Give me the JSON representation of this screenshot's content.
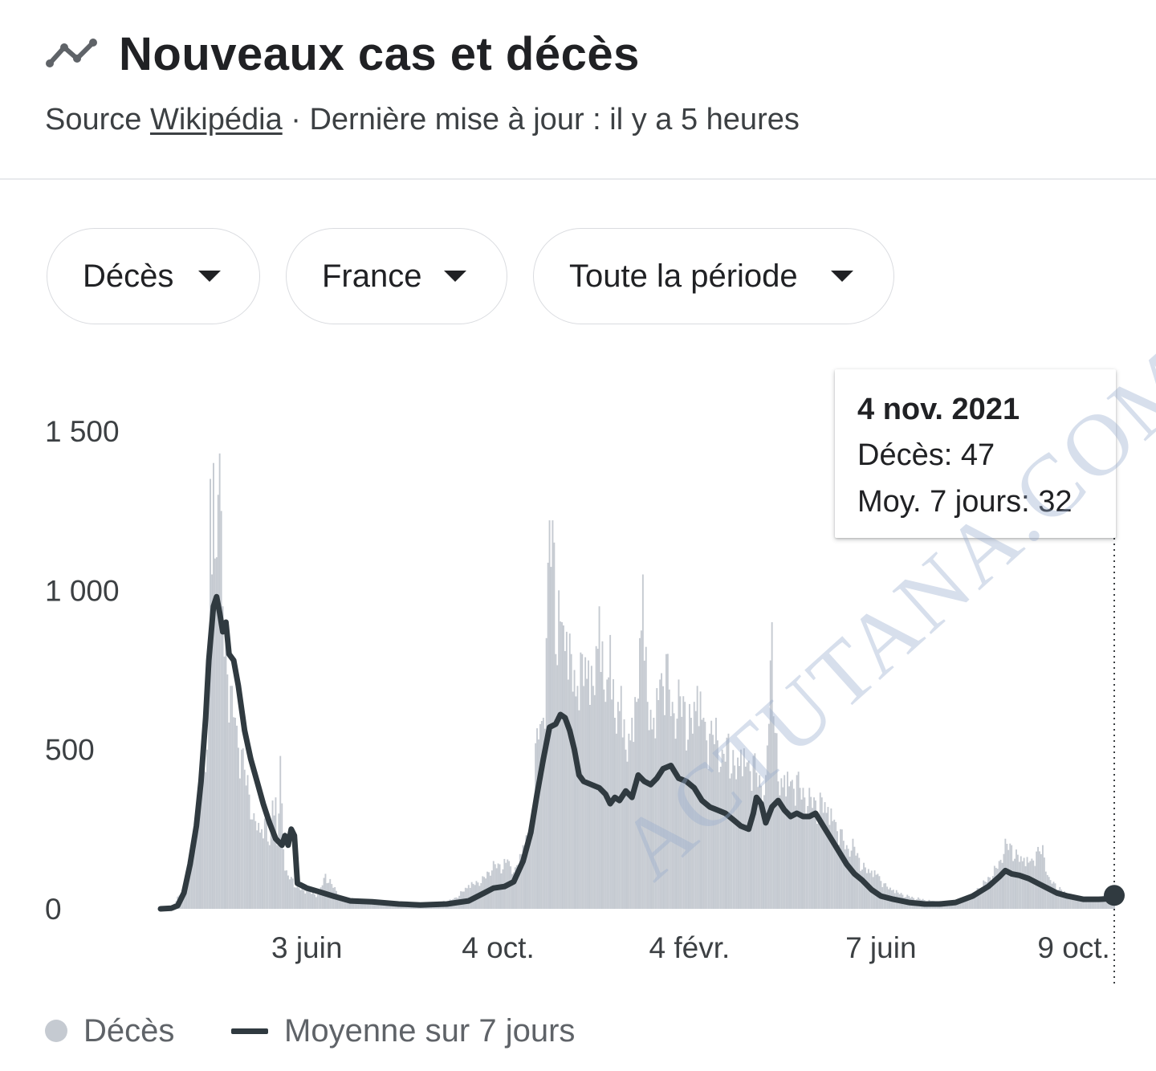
{
  "header": {
    "title": "Nouveaux cas et décès",
    "icon": "trending-line-icon",
    "source_prefix": "Source",
    "source_link": "Wikipédia",
    "updated": "· Dernière mise à jour : il y a 5 heures"
  },
  "filters": [
    {
      "label": "Décès"
    },
    {
      "label": "France"
    },
    {
      "label": "Toute la période"
    }
  ],
  "tooltip": {
    "date": "4 nov. 2021",
    "deaths_line": "Décès: 47",
    "avg_line": "Moy. 7 jours: 32"
  },
  "legend": {
    "deaths": "Décès",
    "average": "Moyenne sur 7 jours"
  },
  "watermark": "ACTUTANA.COM",
  "colors": {
    "bars": "#c5cad1",
    "line": "#303a40",
    "text": "#202124",
    "muted": "#5f6368"
  },
  "chart_data": {
    "type": "bar",
    "title": "Nouveaux cas et décès",
    "yticks": [
      {
        "value": 0,
        "label": "0"
      },
      {
        "value": 500,
        "label": "500"
      },
      {
        "value": 1000,
        "label": "1 000"
      },
      {
        "value": 1500,
        "label": "1 500"
      }
    ],
    "ylim": [
      0,
      1500
    ],
    "xlim": [
      "2020-03-01",
      "2021-11-04"
    ],
    "xticks": [
      {
        "date": "2020-06-03",
        "label": "3 juin"
      },
      {
        "date": "2020-10-04",
        "label": "4 oct."
      },
      {
        "date": "2021-02-04",
        "label": "4 févr."
      },
      {
        "date": "2021-06-07",
        "label": "7 juin"
      },
      {
        "date": "2021-10-09",
        "label": "9 oct."
      }
    ],
    "grid": false,
    "legend_position": "bottom-left",
    "series": [
      {
        "name": "Décès",
        "kind": "bar",
        "points": [
          [
            "2020-03-01",
            0
          ],
          [
            "2020-03-08",
            5
          ],
          [
            "2020-03-15",
            60
          ],
          [
            "2020-03-20",
            150
          ],
          [
            "2020-03-25",
            310
          ],
          [
            "2020-03-28",
            400
          ],
          [
            "2020-03-31",
            500
          ],
          [
            "2020-04-02",
            1350
          ],
          [
            "2020-04-03",
            1050
          ],
          [
            "2020-04-04",
            1400
          ],
          [
            "2020-04-05",
            1100
          ],
          [
            "2020-04-07",
            1300
          ],
          [
            "2020-04-08",
            1430
          ],
          [
            "2020-04-10",
            950
          ],
          [
            "2020-04-12",
            850
          ],
          [
            "2020-04-15",
            700
          ],
          [
            "2020-04-18",
            600
          ],
          [
            "2020-04-22",
            500
          ],
          [
            "2020-04-26",
            420
          ],
          [
            "2020-04-30",
            300
          ],
          [
            "2020-05-05",
            250
          ],
          [
            "2020-05-08",
            280
          ],
          [
            "2020-05-10",
            200
          ],
          [
            "2020-05-12",
            340
          ],
          [
            "2020-05-14",
            350
          ],
          [
            "2020-05-15",
            200
          ],
          [
            "2020-05-17",
            480
          ],
          [
            "2020-05-20",
            120
          ],
          [
            "2020-05-25",
            95
          ],
          [
            "2020-05-28",
            70
          ],
          [
            "2020-06-03",
            60
          ],
          [
            "2020-06-10",
            45
          ],
          [
            "2020-06-15",
            110
          ],
          [
            "2020-06-25",
            40
          ],
          [
            "2020-07-10",
            25
          ],
          [
            "2020-07-25",
            18
          ],
          [
            "2020-08-10",
            15
          ],
          [
            "2020-08-25",
            20
          ],
          [
            "2020-09-05",
            30
          ],
          [
            "2020-09-15",
            75
          ],
          [
            "2020-09-25",
            100
          ],
          [
            "2020-10-01",
            150
          ],
          [
            "2020-10-05",
            140
          ],
          [
            "2020-10-10",
            155
          ],
          [
            "2020-10-15",
            130
          ],
          [
            "2020-10-20",
            200
          ],
          [
            "2020-10-25",
            250
          ],
          [
            "2020-10-28",
            520
          ],
          [
            "2020-10-31",
            580
          ],
          [
            "2020-11-02",
            600
          ],
          [
            "2020-11-04",
            850
          ],
          [
            "2020-11-06",
            1220
          ],
          [
            "2020-11-08",
            1220
          ],
          [
            "2020-11-09",
            1150
          ],
          [
            "2020-11-10",
            800
          ],
          [
            "2020-11-12",
            1000
          ],
          [
            "2020-11-14",
            900
          ],
          [
            "2020-11-17",
            870
          ],
          [
            "2020-11-20",
            800
          ],
          [
            "2020-11-24",
            700
          ],
          [
            "2020-11-27",
            800
          ],
          [
            "2020-12-01",
            780
          ],
          [
            "2020-12-04",
            700
          ],
          [
            "2020-12-08",
            950
          ],
          [
            "2020-12-12",
            650
          ],
          [
            "2020-12-15",
            860
          ],
          [
            "2020-12-18",
            600
          ],
          [
            "2020-12-22",
            700
          ],
          [
            "2020-12-25",
            500
          ],
          [
            "2020-12-29",
            600
          ],
          [
            "2021-01-01",
            650
          ],
          [
            "2021-01-05",
            1050
          ],
          [
            "2021-01-08",
            650
          ],
          [
            "2021-01-12",
            600
          ],
          [
            "2021-01-16",
            720
          ],
          [
            "2021-01-20",
            800
          ],
          [
            "2021-01-24",
            650
          ],
          [
            "2021-01-28",
            720
          ],
          [
            "2021-02-01",
            650
          ],
          [
            "2021-02-05",
            600
          ],
          [
            "2021-02-09",
            700
          ],
          [
            "2021-02-13",
            600
          ],
          [
            "2021-02-17",
            550
          ],
          [
            "2021-02-21",
            600
          ],
          [
            "2021-02-25",
            500
          ],
          [
            "2021-03-01",
            550
          ],
          [
            "2021-03-05",
            450
          ],
          [
            "2021-03-09",
            500
          ],
          [
            "2021-03-13",
            460
          ],
          [
            "2021-03-17",
            480
          ],
          [
            "2021-03-21",
            420
          ],
          [
            "2021-03-25",
            420
          ],
          [
            "2021-03-29",
            900
          ],
          [
            "2021-04-02",
            400
          ],
          [
            "2021-04-06",
            420
          ],
          [
            "2021-04-10",
            400
          ],
          [
            "2021-04-14",
            420
          ],
          [
            "2021-04-18",
            380
          ],
          [
            "2021-04-22",
            380
          ],
          [
            "2021-04-26",
            340
          ],
          [
            "2021-04-30",
            350
          ],
          [
            "2021-05-04",
            320
          ],
          [
            "2021-05-08",
            280
          ],
          [
            "2021-05-12",
            250
          ],
          [
            "2021-05-16",
            200
          ],
          [
            "2021-05-20",
            220
          ],
          [
            "2021-05-24",
            160
          ],
          [
            "2021-05-28",
            130
          ],
          [
            "2021-06-01",
            120
          ],
          [
            "2021-06-05",
            110
          ],
          [
            "2021-06-09",
            80
          ],
          [
            "2021-06-15",
            60
          ],
          [
            "2021-06-25",
            40
          ],
          [
            "2021-07-10",
            25
          ],
          [
            "2021-07-25",
            20
          ],
          [
            "2021-08-05",
            50
          ],
          [
            "2021-08-15",
            100
          ],
          [
            "2021-08-22",
            150
          ],
          [
            "2021-08-26",
            220
          ],
          [
            "2021-08-30",
            200
          ],
          [
            "2021-09-03",
            170
          ],
          [
            "2021-09-07",
            160
          ],
          [
            "2021-09-11",
            150
          ],
          [
            "2021-09-15",
            180
          ],
          [
            "2021-09-19",
            200
          ],
          [
            "2021-09-23",
            100
          ],
          [
            "2021-09-27",
            80
          ],
          [
            "2021-10-01",
            60
          ],
          [
            "2021-10-09",
            40
          ],
          [
            "2021-10-20",
            30
          ],
          [
            "2021-11-04",
            47
          ]
        ]
      },
      {
        "name": "Moyenne sur 7 jours",
        "kind": "line",
        "points": [
          [
            "2020-03-01",
            0
          ],
          [
            "2020-03-08",
            2
          ],
          [
            "2020-03-12",
            10
          ],
          [
            "2020-03-16",
            50
          ],
          [
            "2020-03-20",
            140
          ],
          [
            "2020-03-24",
            260
          ],
          [
            "2020-03-27",
            400
          ],
          [
            "2020-03-30",
            600
          ],
          [
            "2020-04-01",
            780
          ],
          [
            "2020-04-04",
            950
          ],
          [
            "2020-04-06",
            980
          ],
          [
            "2020-04-08",
            930
          ],
          [
            "2020-04-10",
            870
          ],
          [
            "2020-04-12",
            900
          ],
          [
            "2020-04-14",
            800
          ],
          [
            "2020-04-17",
            780
          ],
          [
            "2020-04-20",
            700
          ],
          [
            "2020-04-24",
            560
          ],
          [
            "2020-04-28",
            470
          ],
          [
            "2020-05-02",
            400
          ],
          [
            "2020-05-06",
            330
          ],
          [
            "2020-05-10",
            270
          ],
          [
            "2020-05-14",
            220
          ],
          [
            "2020-05-18",
            200
          ],
          [
            "2020-05-20",
            230
          ],
          [
            "2020-05-22",
            200
          ],
          [
            "2020-05-24",
            250
          ],
          [
            "2020-05-26",
            230
          ],
          [
            "2020-05-28",
            80
          ],
          [
            "2020-06-03",
            65
          ],
          [
            "2020-06-10",
            55
          ],
          [
            "2020-06-20",
            40
          ],
          [
            "2020-07-01",
            25
          ],
          [
            "2020-07-15",
            22
          ],
          [
            "2020-08-01",
            15
          ],
          [
            "2020-08-15",
            12
          ],
          [
            "2020-09-01",
            15
          ],
          [
            "2020-09-15",
            25
          ],
          [
            "2020-09-25",
            50
          ],
          [
            "2020-10-01",
            65
          ],
          [
            "2020-10-08",
            70
          ],
          [
            "2020-10-14",
            85
          ],
          [
            "2020-10-20",
            150
          ],
          [
            "2020-10-25",
            240
          ],
          [
            "2020-10-29",
            360
          ],
          [
            "2020-11-02",
            470
          ],
          [
            "2020-11-06",
            570
          ],
          [
            "2020-11-10",
            580
          ],
          [
            "2020-11-13",
            610
          ],
          [
            "2020-11-16",
            600
          ],
          [
            "2020-11-19",
            560
          ],
          [
            "2020-11-22",
            500
          ],
          [
            "2020-11-25",
            420
          ],
          [
            "2020-11-28",
            400
          ],
          [
            "2020-12-03",
            390
          ],
          [
            "2020-12-08",
            380
          ],
          [
            "2020-12-12",
            360
          ],
          [
            "2020-12-15",
            330
          ],
          [
            "2020-12-18",
            350
          ],
          [
            "2020-12-21",
            340
          ],
          [
            "2020-12-25",
            370
          ],
          [
            "2020-12-29",
            350
          ],
          [
            "2021-01-02",
            420
          ],
          [
            "2021-01-06",
            400
          ],
          [
            "2021-01-10",
            390
          ],
          [
            "2021-01-14",
            410
          ],
          [
            "2021-01-18",
            440
          ],
          [
            "2021-01-23",
            450
          ],
          [
            "2021-01-28",
            410
          ],
          [
            "2021-02-02",
            400
          ],
          [
            "2021-02-07",
            380
          ],
          [
            "2021-02-12",
            340
          ],
          [
            "2021-02-17",
            320
          ],
          [
            "2021-02-22",
            310
          ],
          [
            "2021-02-27",
            300
          ],
          [
            "2021-03-04",
            280
          ],
          [
            "2021-03-09",
            260
          ],
          [
            "2021-03-14",
            250
          ],
          [
            "2021-03-17",
            300
          ],
          [
            "2021-03-19",
            350
          ],
          [
            "2021-03-22",
            330
          ],
          [
            "2021-03-25",
            270
          ],
          [
            "2021-03-29",
            320
          ],
          [
            "2021-04-02",
            340
          ],
          [
            "2021-04-06",
            310
          ],
          [
            "2021-04-10",
            290
          ],
          [
            "2021-04-14",
            300
          ],
          [
            "2021-04-18",
            290
          ],
          [
            "2021-04-22",
            290
          ],
          [
            "2021-04-26",
            300
          ],
          [
            "2021-05-01",
            260
          ],
          [
            "2021-05-06",
            220
          ],
          [
            "2021-05-11",
            180
          ],
          [
            "2021-05-16",
            140
          ],
          [
            "2021-05-21",
            110
          ],
          [
            "2021-05-26",
            90
          ],
          [
            "2021-06-01",
            60
          ],
          [
            "2021-06-07",
            40
          ],
          [
            "2021-06-15",
            30
          ],
          [
            "2021-06-25",
            20
          ],
          [
            "2021-07-05",
            15
          ],
          [
            "2021-07-15",
            15
          ],
          [
            "2021-07-25",
            20
          ],
          [
            "2021-08-05",
            40
          ],
          [
            "2021-08-15",
            70
          ],
          [
            "2021-08-22",
            100
          ],
          [
            "2021-08-26",
            120
          ],
          [
            "2021-08-30",
            110
          ],
          [
            "2021-09-04",
            105
          ],
          [
            "2021-09-10",
            95
          ],
          [
            "2021-09-16",
            80
          ],
          [
            "2021-09-22",
            65
          ],
          [
            "2021-09-28",
            50
          ],
          [
            "2021-10-05",
            40
          ],
          [
            "2021-10-15",
            30
          ],
          [
            "2021-10-25",
            30
          ],
          [
            "2021-11-04",
            32
          ]
        ]
      }
    ]
  }
}
